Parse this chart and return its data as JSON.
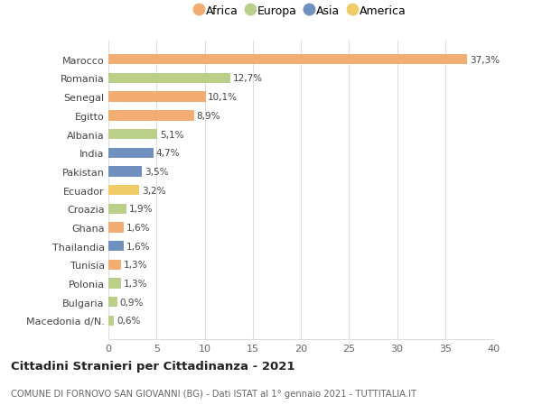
{
  "countries": [
    "Marocco",
    "Romania",
    "Senegal",
    "Egitto",
    "Albania",
    "India",
    "Pakistan",
    "Ecuador",
    "Croazia",
    "Ghana",
    "Thailandia",
    "Tunisia",
    "Polonia",
    "Bulgaria",
    "Macedonia d/N."
  ],
  "values": [
    37.3,
    12.7,
    10.1,
    8.9,
    5.1,
    4.7,
    3.5,
    3.2,
    1.9,
    1.6,
    1.6,
    1.3,
    1.3,
    0.9,
    0.6
  ],
  "labels": [
    "37,3%",
    "12,7%",
    "10,1%",
    "8,9%",
    "5,1%",
    "4,7%",
    "3,5%",
    "3,2%",
    "1,9%",
    "1,6%",
    "1,6%",
    "1,3%",
    "1,3%",
    "0,9%",
    "0,6%"
  ],
  "continents": [
    "Africa",
    "Europa",
    "Africa",
    "Africa",
    "Europa",
    "Asia",
    "Asia",
    "America",
    "Europa",
    "Africa",
    "Asia",
    "Africa",
    "Europa",
    "Europa",
    "Europa"
  ],
  "colors": {
    "Africa": "#F2AE72",
    "Europa": "#BACF8A",
    "Asia": "#7090C0",
    "America": "#F0CC68"
  },
  "legend_order": [
    "Africa",
    "Europa",
    "Asia",
    "America"
  ],
  "xlim": [
    0,
    40
  ],
  "xticks": [
    0,
    5,
    10,
    15,
    20,
    25,
    30,
    35,
    40
  ],
  "title": "Cittadini Stranieri per Cittadinanza - 2021",
  "subtitle": "COMUNE DI FORNOVO SAN GIOVANNI (BG) - Dati ISTAT al 1° gennaio 2021 - TUTTITALIA.IT",
  "bg_color": "#ffffff",
  "grid_color": "#dddddd",
  "bar_height": 0.55
}
